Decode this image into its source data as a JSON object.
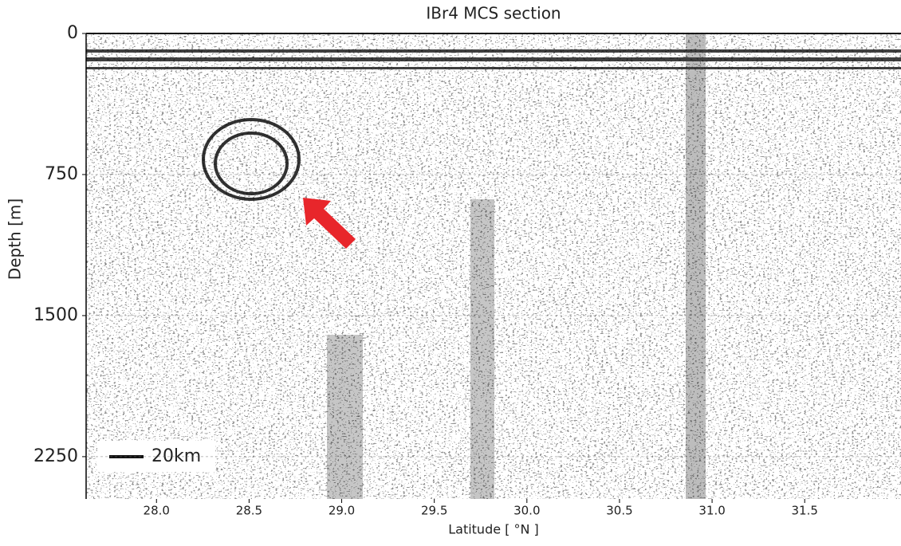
{
  "chart_data": {
    "type": "seismic",
    "title": "IBr4 MCS section",
    "xlabel": "Latitude [ °N ]",
    "ylabel": "Depth [m]",
    "xlim": [
      27.62,
      32.02
    ],
    "ylim": [
      0,
      2475
    ],
    "y_inverted": true,
    "xticks": [
      {
        "value": 28,
        "label": "28.0"
      },
      28.5,
      {
        "value": 29,
        "label": "29.0"
      },
      29.5,
      {
        "value": 30,
        "label": "30.0"
      },
      30.5,
      {
        "value": 31,
        "label": "31.0"
      },
      31.5
    ],
    "yticks": [
      0,
      750,
      1500,
      2250
    ],
    "grid": true,
    "annotations": [
      "20km"
    ]
  }
}
